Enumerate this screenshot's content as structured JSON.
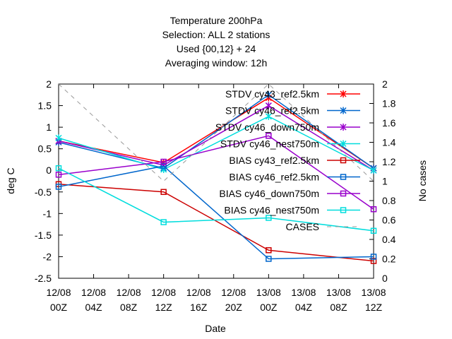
{
  "chart_data": {
    "type": "line",
    "title_lines": [
      "Temperature 200hPa",
      "Selection: ALL      2 stations",
      "Used {00,12} + 24",
      "Averaging window: 12h"
    ],
    "xlabel": "Date",
    "ylabel": "deg C",
    "y2label": "No cases",
    "x_ticks": [
      {
        "x": 0,
        "line1": "12/08",
        "line2": "00Z"
      },
      {
        "x": 4,
        "line1": "12/08",
        "line2": "04Z"
      },
      {
        "x": 8,
        "line1": "12/08",
        "line2": "08Z"
      },
      {
        "x": 12,
        "line1": "12/08",
        "line2": "12Z"
      },
      {
        "x": 16,
        "line1": "12/08",
        "line2": "16Z"
      },
      {
        "x": 20,
        "line1": "12/08",
        "line2": "20Z"
      },
      {
        "x": 24,
        "line1": "13/08",
        "line2": "00Z"
      },
      {
        "x": 28,
        "line1": "13/08",
        "line2": "04Z"
      },
      {
        "x": 32,
        "line1": "13/08",
        "line2": "08Z"
      },
      {
        "x": 36,
        "line1": "13/08",
        "line2": "12Z"
      }
    ],
    "xlim": [
      0,
      36
    ],
    "ylim": [
      -2.5,
      2
    ],
    "y_ticks": [
      "2",
      "1.5",
      "1",
      "0.5",
      "0",
      "-0.5",
      "-1",
      "-1.5",
      "-2",
      "-2.5"
    ],
    "y2lim": [
      0,
      2
    ],
    "y2_ticks": [
      "2",
      "1.8",
      "1.6",
      "1.4",
      "1.2",
      "1",
      "0.8",
      "0.6",
      "0.4",
      "0.2",
      "0"
    ],
    "legend_position": "top-right",
    "x": [
      0,
      12,
      24,
      36
    ],
    "series": [
      {
        "name": "STDV cy43_ref2.5km",
        "color": "#ff0000",
        "marker": "x",
        "y_axis": "left",
        "values": [
          0.68,
          0.18,
          1.68,
          0.05
        ]
      },
      {
        "name": "STDV cy46_ref2.5km",
        "color": "#0066cc",
        "marker": "x",
        "y_axis": "left",
        "values": [
          0.65,
          0.05,
          1.75,
          0.05
        ]
      },
      {
        "name": "STDV cy46_down750m",
        "color": "#9900cc",
        "marker": "x",
        "y_axis": "left",
        "values": [
          0.68,
          0.12,
          1.5,
          0.0
        ]
      },
      {
        "name": "STDV cy46_nest750m",
        "color": "#00dddd",
        "marker": "x",
        "y_axis": "left",
        "values": [
          0.75,
          0.02,
          1.25,
          0.0
        ]
      },
      {
        "name": "BIAS cy43_ref2.5km",
        "color": "#cc0000",
        "marker": "square",
        "y_axis": "left",
        "values": [
          -0.32,
          -0.5,
          -1.85,
          -2.1
        ]
      },
      {
        "name": "BIAS cy46_ref2.5km",
        "color": "#0066cc",
        "marker": "square",
        "y_axis": "left",
        "values": [
          -0.38,
          0.1,
          -2.05,
          -2.0
        ]
      },
      {
        "name": "BIAS cy46_down750m",
        "color": "#9900cc",
        "marker": "square",
        "y_axis": "left",
        "values": [
          -0.1,
          0.2,
          0.8,
          -0.9
        ]
      },
      {
        "name": "BIAS cy46_nest750m",
        "color": "#00dddd",
        "marker": "square",
        "y_axis": "left",
        "values": [
          0.05,
          -1.2,
          -1.1,
          -1.4
        ]
      },
      {
        "name": "CASES",
        "color": "#999999",
        "marker": "none",
        "dashed": true,
        "y_axis": "right",
        "values": [
          2,
          1,
          2,
          1
        ]
      }
    ]
  }
}
